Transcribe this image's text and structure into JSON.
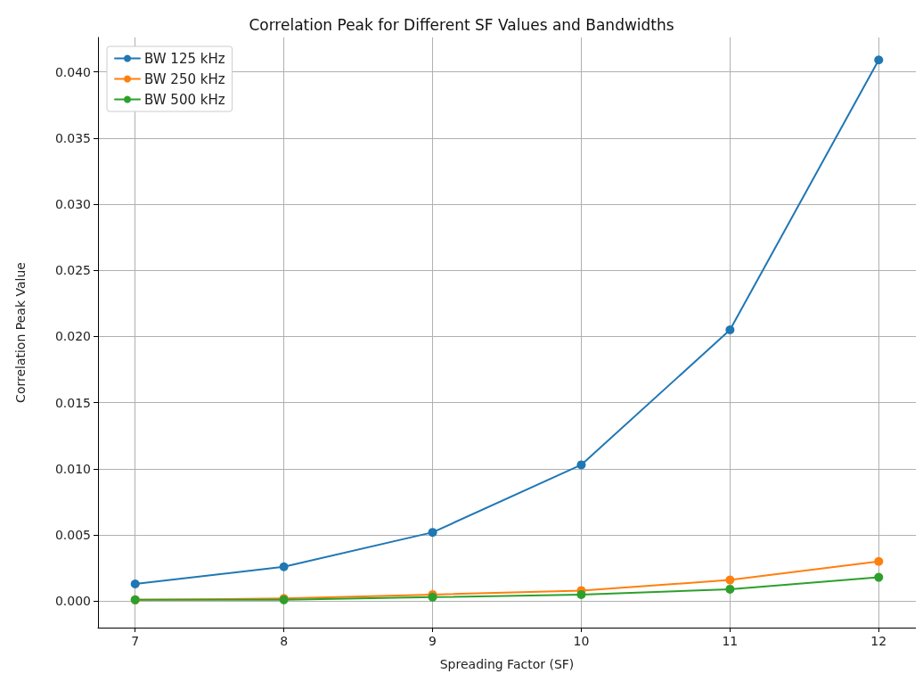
{
  "chart_data": {
    "type": "line",
    "title": "Correlation Peak for Different SF Values and Bandwidths",
    "xlabel": "Spreading Factor (SF)",
    "ylabel": "Correlation Peak Value",
    "x": [
      7,
      8,
      9,
      10,
      11,
      12
    ],
    "series": [
      {
        "name": "BW 125 kHz",
        "color": "#1f77b4",
        "values": [
          0.0013,
          0.0026,
          0.0052,
          0.0103,
          0.0205,
          0.0409
        ]
      },
      {
        "name": "BW 250 kHz",
        "color": "#ff7f0e",
        "values": [
          0.0001,
          0.0002,
          0.0005,
          0.0008,
          0.0016,
          0.003
        ]
      },
      {
        "name": "BW 500 kHz",
        "color": "#2ca02c",
        "values": [
          0.0001,
          0.0001,
          0.0003,
          0.0005,
          0.0009,
          0.0018
        ]
      }
    ],
    "xlim": [
      6.75,
      12.25
    ],
    "xticks": [
      7,
      8,
      9,
      10,
      11,
      12
    ],
    "ylim": [
      -0.002,
      0.0426
    ],
    "yticks": [
      {
        "value": 0,
        "label": "0.000"
      },
      {
        "value": 0.005,
        "label": "0.005"
      },
      {
        "value": 0.01,
        "label": "0.010"
      },
      {
        "value": 0.015,
        "label": "0.015"
      },
      {
        "value": 0.02,
        "label": "0.020"
      },
      {
        "value": 0.025,
        "label": "0.025"
      },
      {
        "value": 0.03,
        "label": "0.030"
      },
      {
        "value": 0.035,
        "label": "0.035"
      },
      {
        "value": 0.04,
        "label": "0.040"
      }
    ],
    "grid": true,
    "legend": "top left",
    "marker": "circle",
    "line_style": "solid"
  }
}
